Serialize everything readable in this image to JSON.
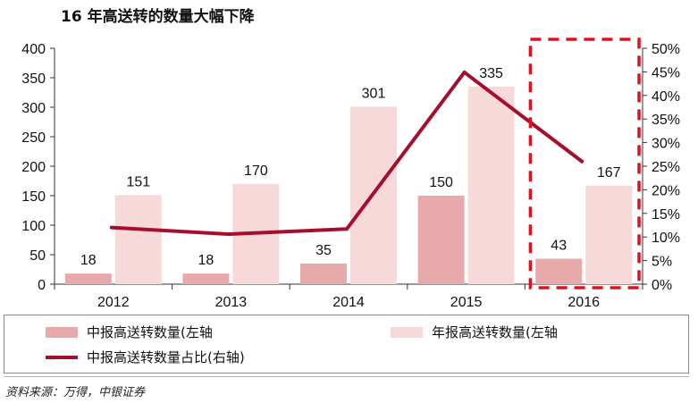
{
  "title": "16 年高送转的数量大幅下降",
  "chart_data": {
    "type": "bar",
    "categories": [
      "2012",
      "2013",
      "2014",
      "2015",
      "2016"
    ],
    "series": [
      {
        "name": "中报高送转数量(左轴",
        "type": "bar",
        "axis": "left",
        "color": "#e8a9ab",
        "values": [
          18,
          18,
          35,
          150,
          43
        ]
      },
      {
        "name": "年报高送转数量(左轴",
        "type": "bar",
        "axis": "left",
        "color": "#f8d9da",
        "values": [
          151,
          170,
          301,
          335,
          167
        ]
      },
      {
        "name": "中报高送转数量占比(右轴)",
        "type": "line",
        "axis": "right",
        "color": "#a50e2d",
        "values": [
          0.12,
          0.106,
          0.117,
          0.449,
          0.26
        ]
      }
    ],
    "y_left": {
      "ylim": [
        0,
        400
      ],
      "ticks": [
        "0",
        "50",
        "100",
        "150",
        "200",
        "250",
        "300",
        "350",
        "400"
      ]
    },
    "y_right": {
      "ylim": [
        0,
        0.5
      ],
      "ticks": [
        "0%",
        "5%",
        "10%",
        "15%",
        "20%",
        "25%",
        "30%",
        "35%",
        "40%",
        "45%",
        "50%"
      ]
    },
    "highlight_category": "2016",
    "grid": false,
    "legend_position": "bottom"
  },
  "source": "资料来源：万得，中银证券"
}
